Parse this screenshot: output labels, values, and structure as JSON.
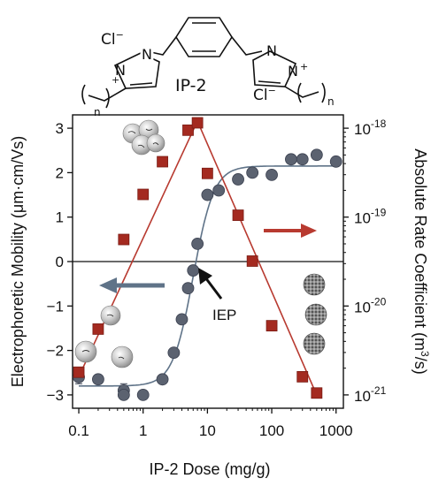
{
  "molecule": {
    "name": "IP-2",
    "counter_ion_left": "Cl",
    "counter_ion_right": "Cl",
    "charge_sup": "−",
    "plus": "+",
    "subscript_n": "n",
    "nitrogen": "N"
  },
  "chart_data": {
    "type": "scatter",
    "xlabel": "IP-2 Dose (mg/g)",
    "ylabel_left": "Electrophoretic Mobility (μm·cm/Vs)",
    "ylabel_right_main": "Absolute Rate Coefficient (m",
    "ylabel_right_sup": "3",
    "ylabel_right_tail": "/s)",
    "x_scale": "log",
    "xlim": [
      0.08,
      1300
    ],
    "x_ticks": [
      0.1,
      1,
      10,
      100,
      1000
    ],
    "x_tick_labels": [
      "0.1",
      "1",
      "10",
      "100",
      "1000"
    ],
    "ylim_left": [
      -3.3,
      3.3
    ],
    "y_ticks_left": [
      -3,
      -2,
      -1,
      0,
      1,
      2,
      3
    ],
    "y_tick_labels_left": [
      "−3",
      "−2",
      "−1",
      "0",
      "1",
      "2",
      "3"
    ],
    "y_scale_right": "log",
    "ylim_right_exp": [
      -21.15,
      -17.85
    ],
    "y_ticks_right_exp": [
      -21,
      -20,
      -19,
      -18
    ],
    "y_tick_base": "10",
    "y_tick_exps_right": [
      "-21",
      "-20",
      "-19",
      "-18"
    ],
    "zero_line": true,
    "annotations": [
      {
        "text": "IEP",
        "type": "label-with-arrow",
        "x": 8.5,
        "y": -0.35
      }
    ],
    "series": [
      {
        "axis": "left",
        "marker": "circle",
        "color": "#5b6270",
        "line_color": "#5f7388",
        "points": [
          {
            "x": 0.1,
            "y": -2.6,
            "err": 0.15
          },
          {
            "x": 0.2,
            "y": -2.65
          },
          {
            "x": 0.5,
            "y": -2.9,
            "err": 0.15
          },
          {
            "x": 0.5,
            "y": -3.0
          },
          {
            "x": 1,
            "y": -3.0
          },
          {
            "x": 2,
            "y": -2.65
          },
          {
            "x": 3,
            "y": -2.05
          },
          {
            "x": 4,
            "y": -1.3
          },
          {
            "x": 5,
            "y": -0.6
          },
          {
            "x": 6,
            "y": -0.2
          },
          {
            "x": 7,
            "y": 0.4
          },
          {
            "x": 10,
            "y": 1.5
          },
          {
            "x": 15,
            "y": 1.6
          },
          {
            "x": 30,
            "y": 1.85
          },
          {
            "x": 50,
            "y": 2.0
          },
          {
            "x": 100,
            "y": 1.95
          },
          {
            "x": 200,
            "y": 2.3
          },
          {
            "x": 300,
            "y": 2.3
          },
          {
            "x": 500,
            "y": 2.4
          },
          {
            "x": 1000,
            "y": 2.25
          }
        ],
        "fit": {
          "kind": "sigmoid",
          "low": -2.8,
          "high": 2.15,
          "center_log": 0.78,
          "width_log": 0.16,
          "x_from": 0.1,
          "x_to": 1000
        }
      },
      {
        "axis": "right",
        "marker": "square",
        "color": "#a42a20",
        "line_color": "#b83a30",
        "points": [
          {
            "x": 0.1,
            "y": 1.8e-21
          },
          {
            "x": 0.2,
            "y": 5.5e-21
          },
          {
            "x": 0.5,
            "y": 5.6e-20
          },
          {
            "x": 1,
            "y": 1.8e-19
          },
          {
            "x": 2,
            "y": 4.2e-19
          },
          {
            "x": 5,
            "y": 9.5e-19
          },
          {
            "x": 7,
            "y": 1.15e-18
          },
          {
            "x": 10,
            "y": 3.1e-19
          },
          {
            "x": 30,
            "y": 1.05e-19
          },
          {
            "x": 50,
            "y": 3.2e-20
          },
          {
            "x": 100,
            "y": 6e-21
          },
          {
            "x": 300,
            "y": 1.6e-21
          },
          {
            "x": 500,
            "y": 1.05e-21
          }
        ],
        "fit": {
          "kind": "piecewise-log",
          "points": [
            [
              0.1,
              1.6e-21
            ],
            [
              7,
              1.2e-18
            ],
            [
              500,
              1e-21
            ]
          ]
        }
      }
    ]
  }
}
